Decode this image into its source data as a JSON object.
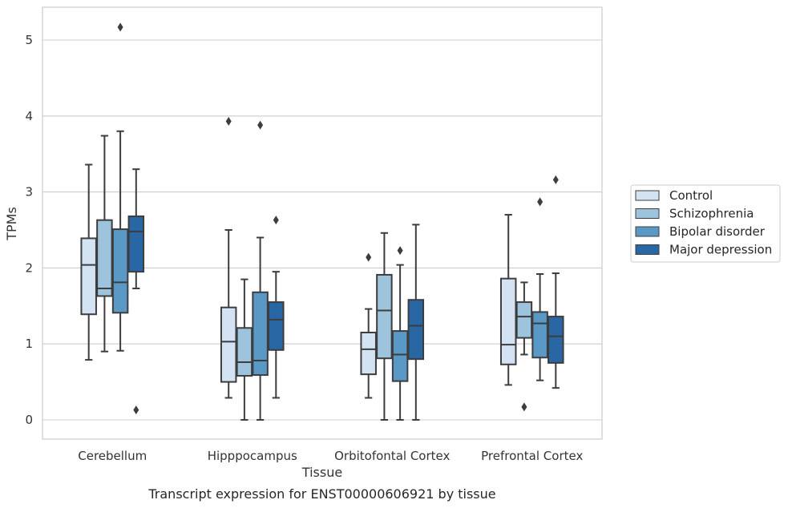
{
  "chart_data": {
    "type": "boxplot",
    "xlabel": "Tissue",
    "ylabel": "TPMs",
    "caption": "Transcript expression for ENST00000606921 by tissue",
    "ylim": [
      -0.25,
      5.45
    ],
    "yticks": [
      0,
      1,
      2,
      3,
      4,
      5
    ],
    "grid": "horizontal",
    "legend_position": "right",
    "categories": [
      "Cerebellum",
      "Hipppocampus",
      "Orbitofontal Cortex",
      "Prefrontal Cortex"
    ],
    "series": [
      {
        "name": "Control",
        "color": "#d4e3f3",
        "boxes": [
          {
            "whislo": 0.79,
            "q1": 1.39,
            "med": 2.04,
            "q3": 2.39,
            "whishi": 3.36,
            "fliers": []
          },
          {
            "whislo": 0.29,
            "q1": 0.5,
            "med": 1.03,
            "q3": 1.48,
            "whishi": 2.5,
            "fliers": [
              3.93
            ]
          },
          {
            "whislo": 0.29,
            "q1": 0.6,
            "med": 0.93,
            "q3": 1.15,
            "whishi": 1.46,
            "fliers": [
              2.14
            ]
          },
          {
            "whislo": 0.46,
            "q1": 0.73,
            "med": 0.99,
            "q3": 1.86,
            "whishi": 2.7,
            "fliers": []
          }
        ]
      },
      {
        "name": "Schizophrenia",
        "color": "#9dc3dd",
        "boxes": [
          {
            "whislo": 0.9,
            "q1": 1.63,
            "med": 1.73,
            "q3": 2.63,
            "whishi": 3.74,
            "fliers": []
          },
          {
            "whislo": 0.0,
            "q1": 0.58,
            "med": 0.76,
            "q3": 1.21,
            "whishi": 1.85,
            "fliers": []
          },
          {
            "whislo": 0.0,
            "q1": 0.81,
            "med": 1.44,
            "q3": 1.91,
            "whishi": 2.46,
            "fliers": []
          },
          {
            "whislo": 0.86,
            "q1": 1.08,
            "med": 1.36,
            "q3": 1.55,
            "whishi": 1.81,
            "fliers": [
              0.17
            ]
          }
        ]
      },
      {
        "name": "Bipolar disorder",
        "color": "#5a98c6",
        "boxes": [
          {
            "whislo": 0.91,
            "q1": 1.41,
            "med": 1.81,
            "q3": 2.51,
            "whishi": 3.8,
            "fliers": [
              5.17
            ]
          },
          {
            "whislo": 0.0,
            "q1": 0.59,
            "med": 0.78,
            "q3": 1.68,
            "whishi": 2.4,
            "fliers": [
              3.88
            ]
          },
          {
            "whislo": 0.0,
            "q1": 0.51,
            "med": 0.86,
            "q3": 1.17,
            "whishi": 2.04,
            "fliers": [
              2.23
            ]
          },
          {
            "whislo": 0.52,
            "q1": 0.82,
            "med": 1.27,
            "q3": 1.42,
            "whishi": 1.92,
            "fliers": [
              2.87
            ]
          }
        ]
      },
      {
        "name": "Major depression",
        "color": "#2967a4",
        "boxes": [
          {
            "whislo": 1.73,
            "q1": 1.95,
            "med": 2.48,
            "q3": 2.68,
            "whishi": 3.3,
            "fliers": [
              0.13
            ]
          },
          {
            "whislo": 0.29,
            "q1": 0.92,
            "med": 1.32,
            "q3": 1.55,
            "whishi": 1.95,
            "fliers": [
              2.63
            ]
          },
          {
            "whislo": 0.0,
            "q1": 0.8,
            "med": 1.24,
            "q3": 1.58,
            "whishi": 2.57,
            "fliers": []
          },
          {
            "whislo": 0.42,
            "q1": 0.75,
            "med": 1.1,
            "q3": 1.36,
            "whishi": 1.93,
            "fliers": [
              3.16
            ]
          }
        ]
      }
    ]
  }
}
